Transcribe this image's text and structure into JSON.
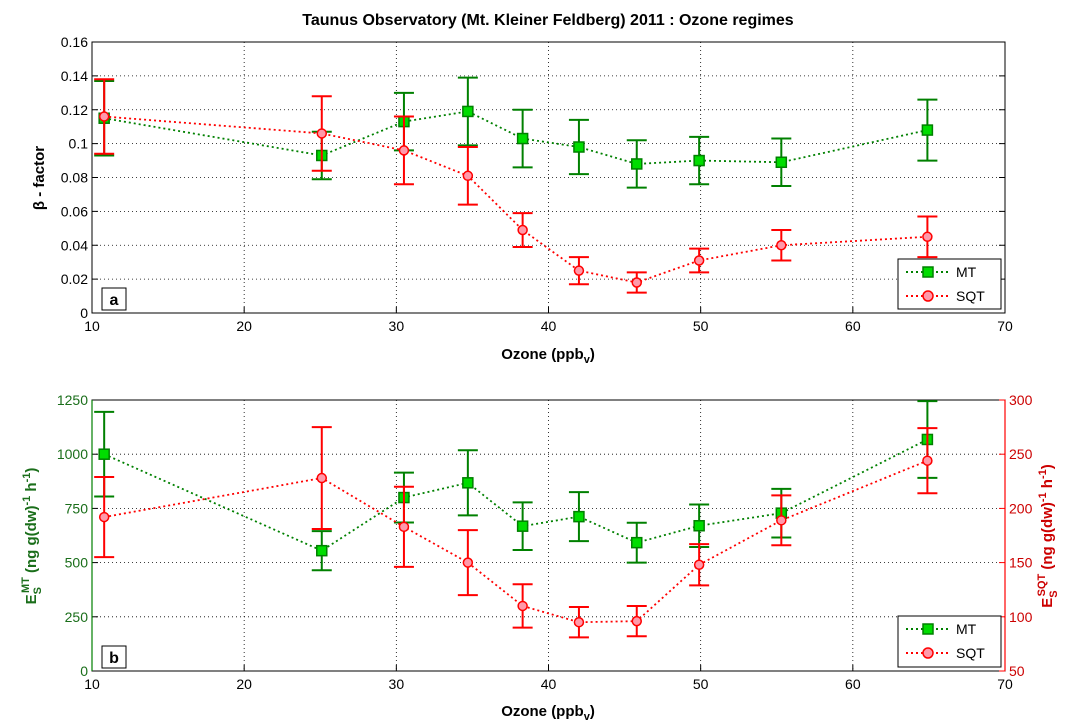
{
  "colors": {
    "mt": "#008000",
    "mt_fill": "#00dd00",
    "sqt": "#ff0000",
    "sqt_fill": "#ff99aa",
    "grid": "#000000"
  },
  "chart_data": [
    {
      "type": "line",
      "panel": "a",
      "title": "Taunus Observatory (Mt. Kleiner Feldberg) 2011 : Ozone regimes",
      "xlabel": "Ozone (ppb",
      "xlabel_sub": "v",
      "xlabel_close": ")",
      "ylabel": "β - factor",
      "xlim": [
        10,
        70
      ],
      "ylim": [
        0,
        0.16
      ],
      "xticks": [
        "10",
        "20",
        "30",
        "40",
        "50",
        "60",
        "70"
      ],
      "yticks": [
        "0",
        "0.02",
        "0.04",
        "0.06",
        "0.08",
        "0.1",
        "0.12",
        "0.14",
        "0.16"
      ],
      "grid": true,
      "legend": "bottom-right",
      "series": [
        {
          "name": "MT",
          "axis": "left",
          "marker": "square",
          "x": [
            10.8,
            25.1,
            30.5,
            34.7,
            38.3,
            42.0,
            45.8,
            49.9,
            55.3,
            64.9
          ],
          "y": [
            0.115,
            0.093,
            0.113,
            0.119,
            0.103,
            0.098,
            0.088,
            0.09,
            0.089,
            0.108
          ],
          "err": [
            0.022,
            0.014,
            0.017,
            0.02,
            0.017,
            0.016,
            0.014,
            0.014,
            0.014,
            0.018
          ]
        },
        {
          "name": "SQT",
          "axis": "left",
          "marker": "circle",
          "x": [
            10.8,
            25.1,
            30.5,
            34.7,
            38.3,
            42.0,
            45.8,
            49.9,
            55.3,
            64.9
          ],
          "y": [
            0.116,
            0.106,
            0.096,
            0.081,
            0.049,
            0.025,
            0.018,
            0.031,
            0.04,
            0.045
          ],
          "err": [
            0.022,
            0.022,
            0.02,
            0.017,
            0.01,
            0.008,
            0.006,
            0.007,
            0.009,
            0.012
          ]
        }
      ]
    },
    {
      "type": "line",
      "panel": "b",
      "xlabel": "Ozone (ppb",
      "xlabel_sub": "v",
      "xlabel_close": ")",
      "ylabel_left": {
        "main": "E",
        "sub": "S",
        "sup": "MT",
        "rest": " (ng g(dw)",
        "sup2": "-1",
        "h": " h",
        "sup3": "-1",
        "close": ")"
      },
      "ylabel_right": {
        "main": "E",
        "sub": "S",
        "sup": "SQT",
        "rest": " (ng g(dw)",
        "sup2": "-1",
        "h": " h",
        "sup3": "-1",
        "close": ")"
      },
      "xlim": [
        10,
        70
      ],
      "ylim_left": [
        0,
        1250
      ],
      "ylim_right": [
        50,
        300
      ],
      "xticks": [
        "10",
        "20",
        "30",
        "40",
        "50",
        "60",
        "70"
      ],
      "yticks_left": [
        "0",
        "250",
        "500",
        "750",
        "1000",
        "1250"
      ],
      "yticks_right": [
        "50",
        "100",
        "150",
        "200",
        "250",
        "300"
      ],
      "grid": true,
      "legend": "bottom-right",
      "series": [
        {
          "name": "MT",
          "axis": "left",
          "marker": "square",
          "x": [
            10.8,
            25.1,
            30.5,
            34.7,
            38.3,
            42.0,
            45.8,
            49.9,
            55.3,
            64.9
          ],
          "y": [
            1000,
            555,
            800,
            868,
            668,
            712,
            592,
            670,
            728,
            1068
          ],
          "err": [
            195,
            90,
            115,
            150,
            110,
            113,
            92,
            98,
            112,
            177
          ]
        },
        {
          "name": "SQT",
          "axis": "right",
          "marker": "circle",
          "x": [
            10.8,
            25.1,
            30.5,
            34.7,
            38.3,
            42.0,
            45.8,
            49.9,
            55.3,
            64.9
          ],
          "y": [
            192,
            228,
            183,
            150,
            110,
            95,
            96,
            148,
            189,
            244
          ],
          "err": [
            37,
            47,
            37,
            30,
            20,
            14,
            14,
            19,
            23,
            30
          ]
        }
      ]
    }
  ]
}
